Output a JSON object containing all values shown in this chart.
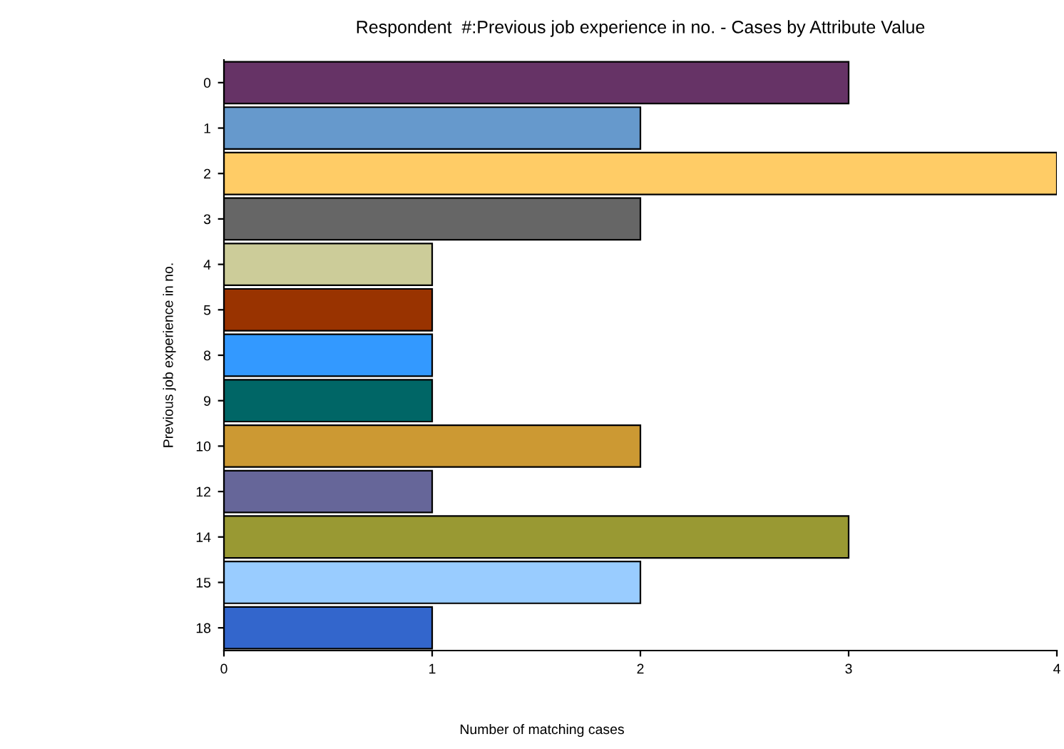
{
  "chart_data": {
    "type": "bar",
    "orientation": "horizontal",
    "title": "Respondent  #:Previous job experience in no. - Cases by Attribute Value",
    "xlabel": "Number of matching cases",
    "ylabel": "Previous job experience in no.",
    "categories": [
      "0",
      "1",
      "2",
      "3",
      "4",
      "5",
      "8",
      "9",
      "10",
      "12",
      "14",
      "15",
      "18"
    ],
    "values": [
      3,
      2,
      4,
      2,
      1,
      1,
      1,
      1,
      2,
      1,
      3,
      2,
      1
    ],
    "colors": [
      "#663366",
      "#6699cc",
      "#ffcc66",
      "#666666",
      "#cccc99",
      "#993300",
      "#3399ff",
      "#006666",
      "#cc9933",
      "#666699",
      "#999933",
      "#99ccff",
      "#3366cc"
    ],
    "xlim": [
      0,
      4
    ],
    "xticks": [
      0,
      1,
      2,
      3,
      4
    ],
    "grid": false,
    "legend": false
  }
}
